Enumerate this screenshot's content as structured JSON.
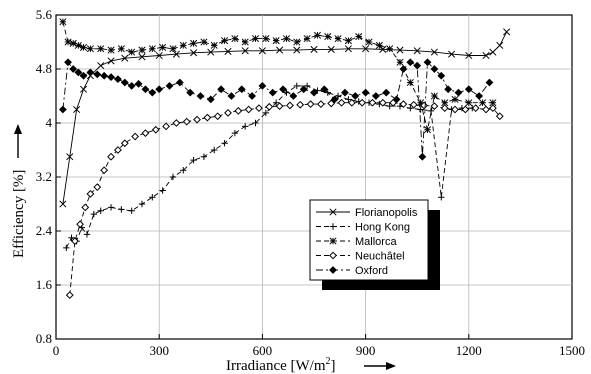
{
  "chart_data": {
    "type": "line",
    "xlabel": "Irradiance [W/m",
    "xlabel_sup": "2",
    "xlabel_suffix": "]",
    "ylabel": "Efficiency [%]",
    "xlim": [
      0,
      1500
    ],
    "ylim": [
      0.8,
      5.6
    ],
    "x_ticks": [
      0,
      300,
      600,
      900,
      1200,
      1500
    ],
    "y_ticks": [
      0.8,
      1.6,
      2.4,
      3.2,
      4,
      4.8,
      5.6
    ],
    "x_tick_labels": [
      "0",
      "300",
      "600",
      "900",
      "1200",
      "1500"
    ],
    "y_tick_labels": [
      "0.8",
      "1.6",
      "2.4",
      "3.2",
      "4",
      "4.8",
      "5.6"
    ],
    "grid": true,
    "legend_position": "lower-right",
    "series": [
      {
        "name": "Florianopolis",
        "marker": "x",
        "dash": "solid",
        "x": [
          20,
          40,
          60,
          80,
          100,
          130,
          160,
          200,
          250,
          300,
          350,
          400,
          450,
          500,
          550,
          600,
          650,
          700,
          750,
          800,
          850,
          900,
          950,
          1000,
          1050,
          1100,
          1150,
          1200,
          1250,
          1270,
          1290,
          1310
        ],
        "y": [
          2.8,
          3.5,
          4.2,
          4.5,
          4.7,
          4.85,
          4.92,
          4.96,
          4.98,
          5.0,
          5.02,
          5.04,
          5.05,
          5.06,
          5.07,
          5.07,
          5.08,
          5.08,
          5.09,
          5.09,
          5.1,
          5.1,
          5.09,
          5.08,
          5.07,
          5.05,
          5.02,
          5.0,
          5.0,
          5.05,
          5.15,
          5.35
        ]
      },
      {
        "name": "Hong Kong",
        "marker": "+",
        "dash": "dashed",
        "x": [
          30,
          45,
          60,
          75,
          90,
          110,
          130,
          160,
          190,
          220,
          250,
          280,
          310,
          340,
          370,
          400,
          430,
          460,
          490,
          520,
          550,
          580,
          610,
          640,
          670,
          700,
          730,
          760,
          790,
          820,
          850,
          880,
          910,
          940,
          970,
          1000,
          1030,
          1060,
          1090,
          1120,
          1150,
          1180,
          1210
        ],
        "y": [
          2.15,
          2.3,
          2.25,
          2.45,
          2.35,
          2.65,
          2.7,
          2.75,
          2.72,
          2.7,
          2.8,
          2.9,
          3.0,
          3.2,
          3.3,
          3.45,
          3.5,
          3.6,
          3.7,
          3.85,
          3.95,
          4.0,
          4.15,
          4.3,
          4.45,
          4.55,
          4.55,
          4.48,
          4.45,
          4.4,
          4.35,
          4.32,
          4.3,
          4.28,
          4.25,
          4.25,
          4.22,
          4.2,
          4.18,
          2.9,
          4.2,
          4.22,
          4.22
        ]
      },
      {
        "name": "Mallorca",
        "marker": "star",
        "dash": "dashed",
        "x": [
          20,
          35,
          50,
          65,
          80,
          100,
          130,
          160,
          190,
          220,
          250,
          280,
          310,
          340,
          370,
          400,
          430,
          460,
          490,
          520,
          550,
          580,
          610,
          640,
          670,
          700,
          730,
          760,
          790,
          820,
          850,
          880,
          910,
          940,
          970,
          1000,
          1030,
          1060,
          1080,
          1100,
          1130,
          1160,
          1200,
          1240,
          1270
        ],
        "y": [
          5.5,
          5.2,
          5.18,
          5.15,
          5.12,
          5.1,
          5.1,
          5.08,
          5.1,
          5.05,
          5.08,
          5.1,
          5.12,
          5.1,
          5.15,
          5.18,
          5.2,
          5.15,
          5.22,
          5.25,
          5.2,
          5.25,
          5.25,
          5.22,
          5.25,
          5.2,
          5.25,
          5.3,
          5.28,
          5.25,
          5.22,
          5.28,
          5.2,
          5.15,
          5.1,
          4.9,
          4.6,
          4.3,
          3.9,
          4.4,
          4.3,
          4.35,
          4.3,
          4.3,
          4.3
        ]
      },
      {
        "name": "Neuchâtel",
        "marker": "diamond-open",
        "dash": "dashed",
        "x": [
          40,
          55,
          70,
          85,
          100,
          120,
          140,
          160,
          180,
          200,
          230,
          260,
          290,
          320,
          350,
          380,
          410,
          440,
          470,
          500,
          530,
          560,
          590,
          620,
          650,
          680,
          710,
          740,
          770,
          800,
          830,
          860,
          890,
          920,
          950,
          980,
          1010,
          1040,
          1070,
          1100,
          1130,
          1160,
          1190,
          1220,
          1250,
          1270,
          1290
        ],
        "y": [
          1.45,
          2.25,
          2.5,
          2.75,
          2.95,
          3.05,
          3.3,
          3.5,
          3.6,
          3.7,
          3.8,
          3.85,
          3.9,
          3.95,
          4.0,
          4.02,
          4.05,
          4.08,
          4.1,
          4.15,
          4.18,
          4.2,
          4.22,
          4.24,
          4.25,
          4.26,
          4.27,
          4.28,
          4.28,
          4.29,
          4.3,
          4.3,
          4.3,
          4.3,
          4.3,
          4.3,
          4.28,
          4.27,
          4.26,
          4.25,
          4.22,
          4.2,
          4.2,
          4.22,
          4.2,
          4.22,
          4.1
        ]
      },
      {
        "name": "Oxford",
        "marker": "diamond-filled",
        "dash": "dashdot",
        "x": [
          20,
          35,
          50,
          65,
          80,
          100,
          120,
          140,
          160,
          180,
          200,
          220,
          240,
          260,
          280,
          300,
          330,
          360,
          390,
          420,
          450,
          480,
          510,
          540,
          570,
          600,
          630,
          660,
          690,
          720,
          750,
          780,
          810,
          840,
          870,
          900,
          930,
          960,
          990,
          1010,
          1030,
          1050,
          1065,
          1080,
          1100,
          1120,
          1140,
          1170,
          1200,
          1230,
          1260
        ],
        "y": [
          4.2,
          4.9,
          4.8,
          4.75,
          4.7,
          4.75,
          4.72,
          4.7,
          4.68,
          4.65,
          4.6,
          4.55,
          4.58,
          4.5,
          4.45,
          4.5,
          4.55,
          4.6,
          4.45,
          4.4,
          4.35,
          4.5,
          4.4,
          4.5,
          4.4,
          4.55,
          4.45,
          4.5,
          4.4,
          4.5,
          4.45,
          4.5,
          4.35,
          4.45,
          4.4,
          4.45,
          4.4,
          4.45,
          4.35,
          4.8,
          4.9,
          4.85,
          3.5,
          4.9,
          4.8,
          4.7,
          4.5,
          4.45,
          4.5,
          4.4,
          4.6
        ]
      }
    ]
  }
}
